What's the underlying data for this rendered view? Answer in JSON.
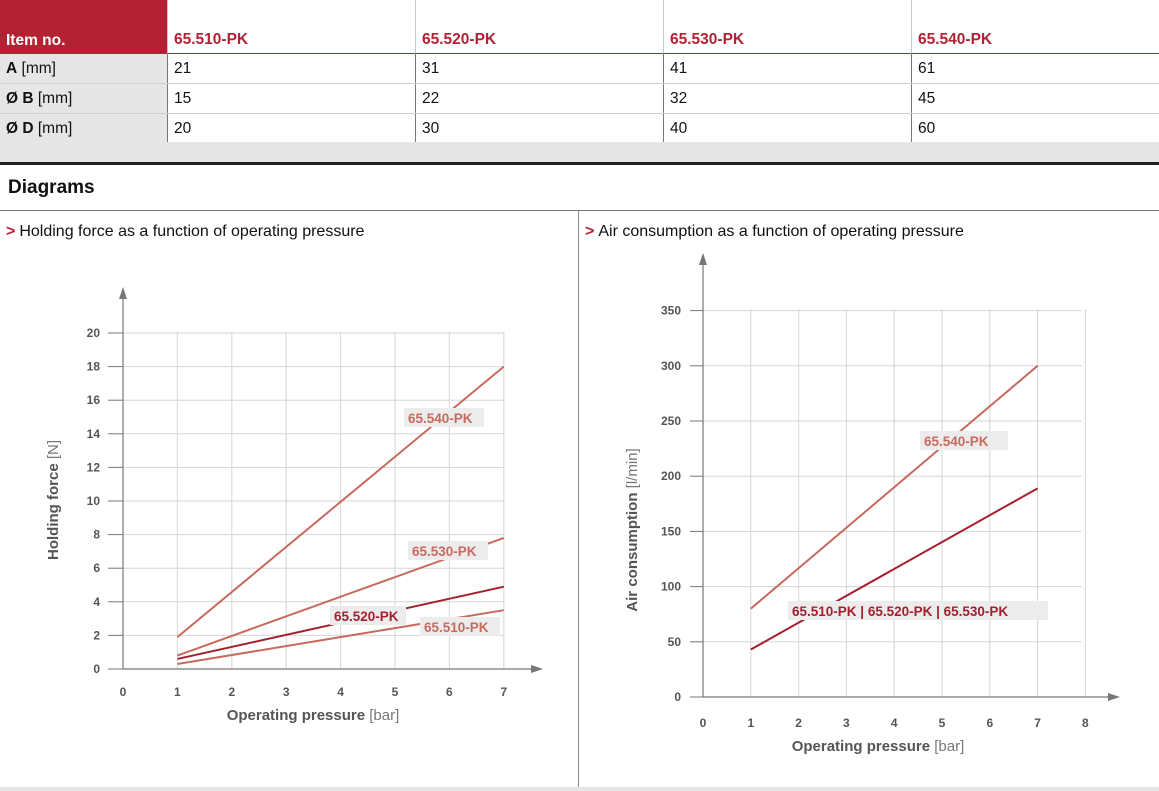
{
  "table": {
    "header": [
      "Item no.",
      "65.510-PK",
      "65.520-PK",
      "65.530-PK",
      "65.540-PK"
    ],
    "rows": [
      {
        "label_bold": "A",
        "label_unit": " [mm]",
        "values": [
          "21",
          "31",
          "41",
          "61"
        ]
      },
      {
        "label_bold": "Ø B",
        "label_unit": " [mm]",
        "values": [
          "15",
          "22",
          "32",
          "45"
        ]
      },
      {
        "label_bold": "Ø D",
        "label_unit": " [mm]",
        "values": [
          "20",
          "30",
          "40",
          "60"
        ]
      }
    ]
  },
  "section_title": "Diagrams",
  "diagram_left_title": "Holding force as a function of operating pressure",
  "diagram_right_title": "Air consumption as a function of operating pressure",
  "subtitle_marker": ">",
  "colors": {
    "accent": "#b22232",
    "line_light": "#c86a5e",
    "line_dark": "#a5202e",
    "grid": "#d6d6d6"
  },
  "chart_data": [
    {
      "type": "line",
      "x_label_main": "Operating pressure",
      "x_label_unit": "[bar]",
      "y_label_main": "Holding force",
      "y_label_unit": "[N]",
      "x_ticks": [
        "0",
        "1",
        "2",
        "3",
        "4",
        "5",
        "6",
        "7"
      ],
      "y_ticks": [
        "0",
        "2",
        "4",
        "6",
        "8",
        "10",
        "12",
        "14",
        "16",
        "18",
        "20"
      ],
      "xlim": [
        0,
        7
      ],
      "ylim": [
        0,
        20
      ],
      "series": [
        {
          "name": "65.540-PK",
          "x": [
            1,
            7
          ],
          "y": [
            1.9,
            18.0
          ],
          "color": "#c86a5e"
        },
        {
          "name": "65.530-PK",
          "x": [
            1,
            7
          ],
          "y": [
            0.8,
            7.8
          ],
          "color": "#c86a5e"
        },
        {
          "name": "65.520-PK",
          "x": [
            1,
            7
          ],
          "y": [
            0.6,
            4.9
          ],
          "color": "#a5202e"
        },
        {
          "name": "65.510-PK",
          "x": [
            1,
            7
          ],
          "y": [
            0.3,
            3.5
          ],
          "color": "#c86a5e"
        }
      ]
    },
    {
      "type": "line",
      "x_label_main": "Operating pressure",
      "x_label_unit": "[bar]",
      "y_label_main": "Air consumption",
      "y_label_unit": "[l/min]",
      "x_ticks": [
        "0",
        "1",
        "2",
        "3",
        "4",
        "5",
        "6",
        "7",
        "8"
      ],
      "y_ticks": [
        "0",
        "50",
        "100",
        "150",
        "200",
        "250",
        "300",
        "350"
      ],
      "xlim": [
        0,
        8
      ],
      "ylim": [
        0,
        350
      ],
      "series": [
        {
          "name": "65.540-PK",
          "x": [
            1,
            7
          ],
          "y": [
            80,
            300
          ],
          "color": "#c86a5e"
        },
        {
          "name": "65.510-PK | 65.520-PK | 65.530-PK",
          "x": [
            1,
            7
          ],
          "y": [
            43,
            189
          ],
          "color": "#a5202e"
        }
      ]
    }
  ]
}
